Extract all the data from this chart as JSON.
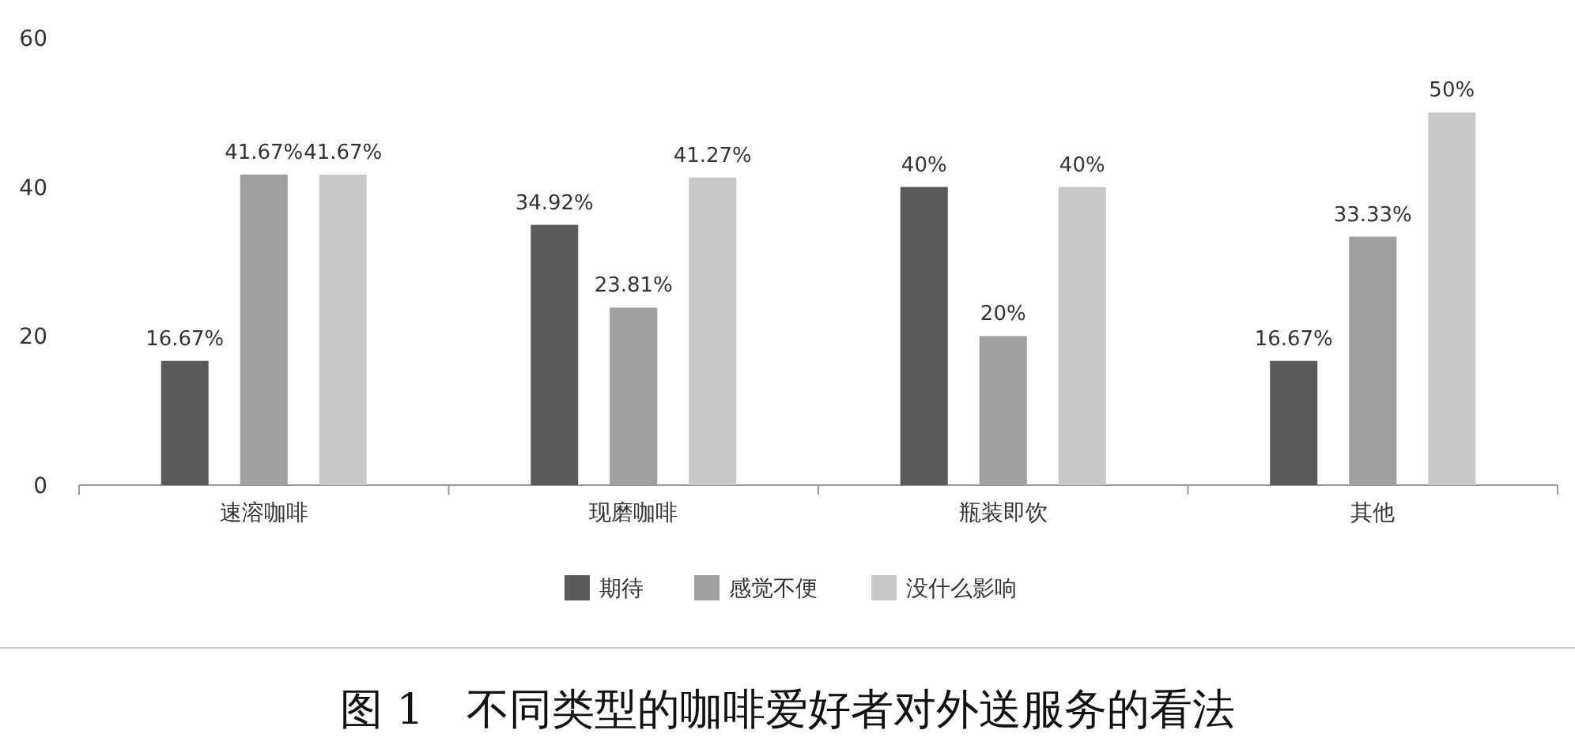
{
  "chart_data": {
    "type": "bar",
    "title": "图 1　不同类型的咖啡爱好者对外送服务的看法",
    "categories": [
      "速溶咖啡",
      "现磨咖啡",
      "瓶装即饮",
      "其他"
    ],
    "series": [
      {
        "name": "期待",
        "color": "#5a5a5a",
        "values": [
          16.67,
          34.92,
          40,
          16.67
        ],
        "value_labels": [
          "16.67%",
          "34.92%",
          "40%",
          "16.67%"
        ]
      },
      {
        "name": "感觉不便",
        "color": "#a0a0a0",
        "values": [
          41.67,
          23.81,
          20,
          33.33
        ],
        "value_labels": [
          "41.67%",
          "23.81%",
          "20%",
          "33.33%"
        ]
      },
      {
        "name": "没什么影响",
        "color": "#c8c8c8",
        "values": [
          41.67,
          41.27,
          40,
          50
        ],
        "value_labels": [
          "41.67%",
          "41.27%",
          "40%",
          "50%"
        ]
      }
    ],
    "ylim": [
      0,
      60
    ],
    "yticks": [
      0,
      20,
      40,
      60
    ],
    "legend": "bottom"
  }
}
